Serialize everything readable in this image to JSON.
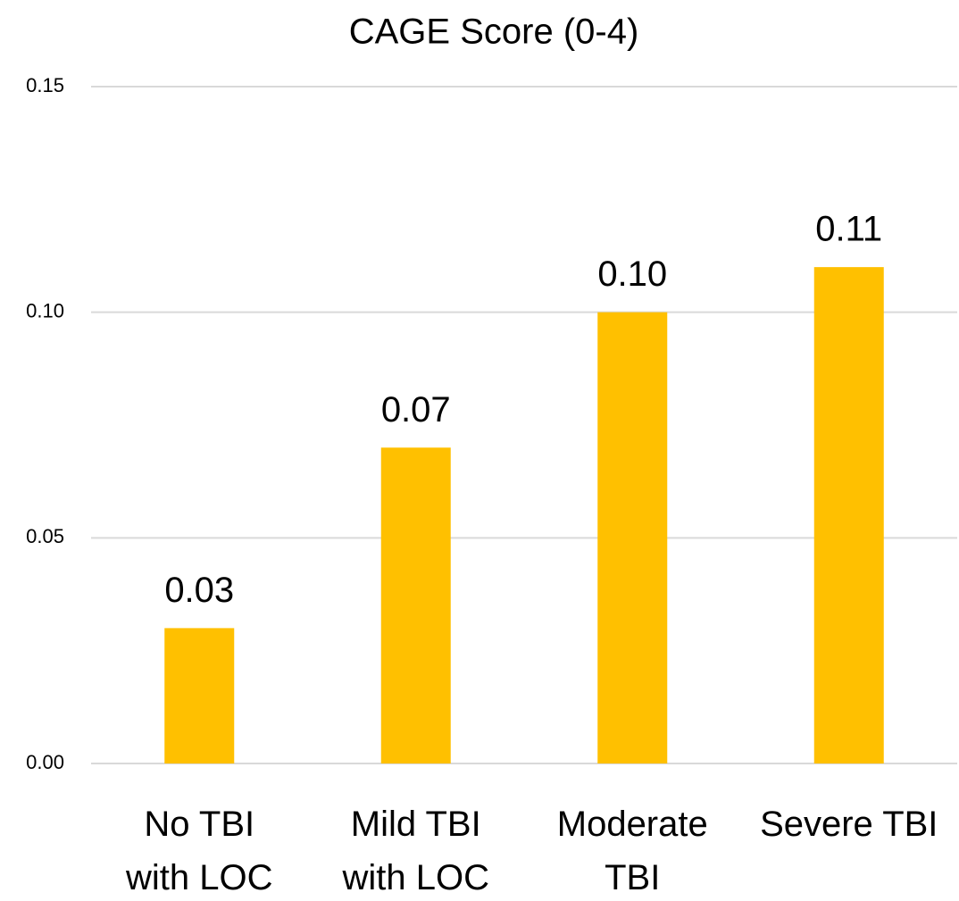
{
  "chart_data": {
    "type": "bar",
    "title": "CAGE Score (0-4)",
    "categories": [
      "No TBI\nwith LOC",
      "Mild TBI\nwith LOC",
      "Moderate\nTBI",
      "Severe TBI"
    ],
    "values": [
      0.03,
      0.07,
      0.1,
      0.11
    ],
    "value_labels": [
      "0.03",
      "0.07",
      "0.10",
      "0.11"
    ],
    "color": "#ffc000",
    "ylim": [
      0,
      0.15
    ],
    "yticks": [
      {
        "value": 0,
        "label": "0.00"
      },
      0.05,
      {
        "value": 0.1,
        "label": "0.10"
      },
      0.15
    ],
    "grid": true
  }
}
